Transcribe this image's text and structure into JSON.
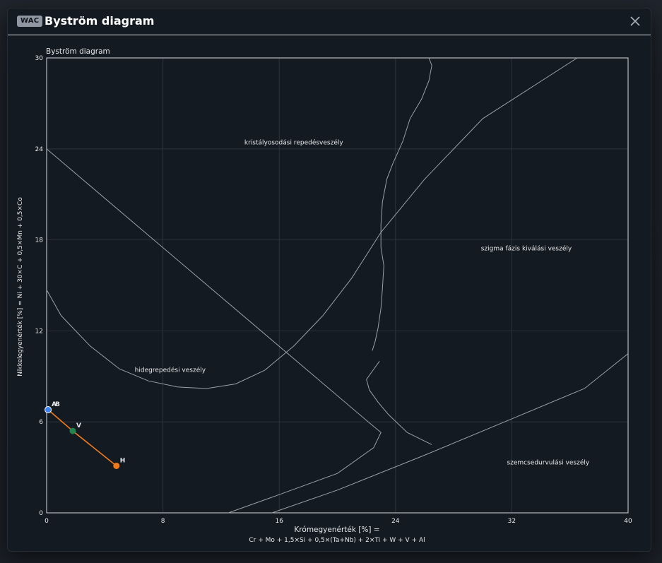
{
  "modal": {
    "badge": "WAC",
    "title": "Byström diagram"
  },
  "chart_data": {
    "type": "scatter",
    "title": "Byström diagram",
    "xlabel": "Krómegyenérték [%] =",
    "xlabel_formula": "Cr + Mo + 1,5×Si + 0,5×(Ta+Nb) + 2×Ti + W + V + Al",
    "ylabel": "Nikkelegyenérték [%] = Ni + 30×C + 0,5×Mn + 0,5×Co",
    "xlim": [
      0,
      40
    ],
    "ylim": [
      0,
      30
    ],
    "xticks": [
      0,
      8,
      16,
      24,
      32,
      40
    ],
    "yticks": [
      0,
      6,
      12,
      18,
      24,
      30
    ],
    "grid": true,
    "regions": [
      {
        "label": "kristályosodási repedésveszély",
        "x": 17,
        "y": 24.3
      },
      {
        "label": "szigma fázis kiválási veszély",
        "x": 33,
        "y": 17.3
      },
      {
        "label": "hidegrepedési veszély",
        "x": 8.5,
        "y": 9.3
      },
      {
        "label": "szemcsedurvulási veszély",
        "x": 34.5,
        "y": 3.2
      }
    ],
    "boundary_curves": [
      {
        "points": [
          [
            0,
            24
          ],
          [
            22,
            6.1
          ],
          [
            23,
            5.3
          ],
          [
            22.5,
            4.3
          ],
          [
            20,
            2.6
          ],
          [
            16,
            1.2
          ],
          [
            12.5,
            0
          ]
        ]
      },
      {
        "points": [
          [
            0,
            14.7
          ],
          [
            1,
            13
          ],
          [
            3,
            11
          ],
          [
            5,
            9.5
          ],
          [
            7,
            8.7
          ],
          [
            9,
            8.3
          ],
          [
            11,
            8.2
          ],
          [
            13,
            8.5
          ],
          [
            15,
            9.4
          ],
          [
            17,
            11
          ],
          [
            19,
            13
          ],
          [
            21,
            15.5
          ],
          [
            23,
            18.5
          ],
          [
            26,
            22
          ],
          [
            30,
            26
          ],
          [
            36.5,
            30
          ]
        ]
      },
      {
        "points": [
          [
            26.3,
            30
          ],
          [
            26.5,
            29.5
          ],
          [
            26.3,
            28.5
          ],
          [
            25.8,
            27.3
          ],
          [
            25,
            26
          ],
          [
            24.5,
            24.5
          ],
          [
            23.8,
            23
          ],
          [
            23.4,
            22
          ],
          [
            23.1,
            20.5
          ],
          [
            23,
            19
          ],
          [
            23,
            17.5
          ],
          [
            23.2,
            16.3
          ],
          [
            23.1,
            14.8
          ],
          [
            23,
            13.5
          ],
          [
            22.8,
            12.2
          ],
          [
            22.6,
            11.3
          ],
          [
            22.4,
            10.7
          ]
        ]
      },
      {
        "points": [
          [
            22.9,
            10
          ],
          [
            22.3,
            9.2
          ],
          [
            22,
            8.8
          ],
          [
            22.2,
            8.1
          ],
          [
            22.8,
            7.3
          ],
          [
            23.5,
            6.5
          ],
          [
            24.8,
            5.3
          ],
          [
            26.5,
            4.5
          ]
        ]
      },
      {
        "points": [
          [
            15.5,
            0
          ],
          [
            20,
            1.5
          ],
          [
            26,
            3.8
          ],
          [
            32,
            6.2
          ],
          [
            37,
            8.2
          ],
          [
            40,
            10.5
          ]
        ]
      }
    ],
    "series": [
      {
        "color": "#f07a1a",
        "points": [
          {
            "label": "A",
            "x": 0.1,
            "y": 6.8,
            "color": "#3b82f6"
          },
          {
            "label": "B",
            "x": 0.1,
            "y": 6.8,
            "color": "#3b82f6"
          },
          {
            "label": "V",
            "x": 1.8,
            "y": 5.4,
            "color": "#22844f"
          },
          {
            "label": "H",
            "x": 4.8,
            "y": 3.1,
            "color": "#f07a1a"
          }
        ]
      }
    ]
  }
}
